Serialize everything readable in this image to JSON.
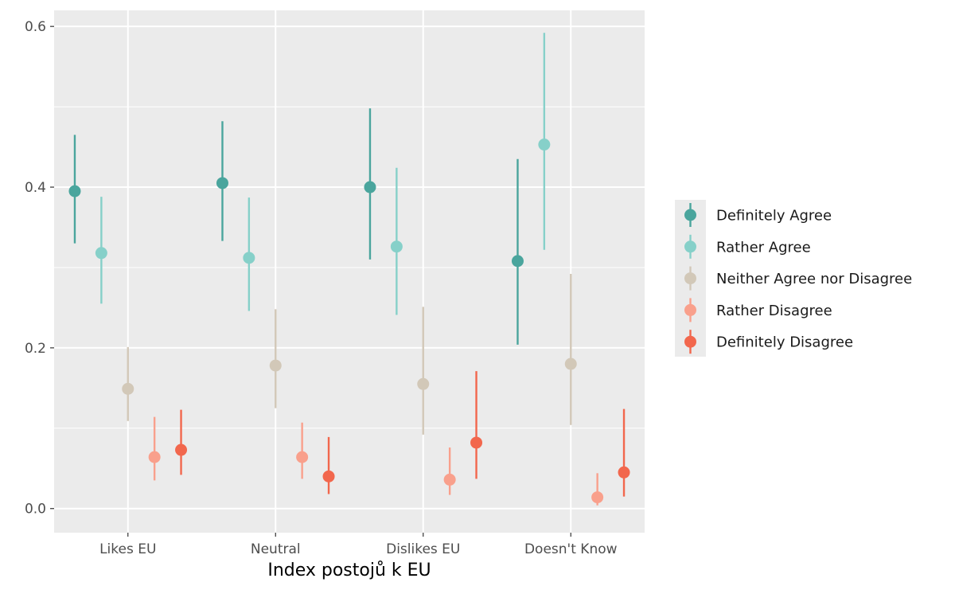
{
  "chart_data": {
    "type": "pointrange",
    "title": "",
    "xlabel": "Index postojů k EU",
    "ylabel": "",
    "ylim": [
      -0.03,
      0.62
    ],
    "yticks": [
      0.0,
      0.2,
      0.4,
      0.6
    ],
    "ytick_labels": [
      "0.0",
      "0.2",
      "0.4",
      "0.6"
    ],
    "categories": [
      "Likes EU",
      "Neutral",
      "Dislikes EU",
      "Doesn't Know"
    ],
    "legend_position": "right",
    "series": [
      {
        "name": "Definitely Agree",
        "color": "#4aa59d",
        "values": [
          0.395,
          0.405,
          0.4,
          0.308
        ],
        "lower": [
          0.33,
          0.333,
          0.31,
          0.204
        ],
        "upper": [
          0.465,
          0.482,
          0.498,
          0.435
        ]
      },
      {
        "name": "Rather Agree",
        "color": "#86d0c9",
        "values": [
          0.318,
          0.312,
          0.326,
          0.453
        ],
        "lower": [
          0.255,
          0.246,
          0.241,
          0.322
        ],
        "upper": [
          0.388,
          0.387,
          0.424,
          0.592
        ]
      },
      {
        "name": "Neither Agree nor Disagree",
        "color": "#d2c8b8",
        "values": [
          0.149,
          0.178,
          0.155,
          0.18
        ],
        "lower": [
          0.109,
          0.125,
          0.092,
          0.104
        ],
        "upper": [
          0.201,
          0.248,
          0.251,
          0.292
        ]
      },
      {
        "name": "Rather Disagree",
        "color": "#f9a08c",
        "values": [
          0.064,
          0.064,
          0.036,
          0.014
        ],
        "lower": [
          0.035,
          0.037,
          0.017,
          0.004
        ],
        "upper": [
          0.114,
          0.107,
          0.076,
          0.044
        ]
      },
      {
        "name": "Definitely Disagree",
        "color": "#f2674d",
        "values": [
          0.073,
          0.04,
          0.082,
          0.045
        ],
        "lower": [
          0.042,
          0.018,
          0.037,
          0.015
        ],
        "upper": [
          0.123,
          0.089,
          0.171,
          0.124
        ]
      }
    ]
  }
}
